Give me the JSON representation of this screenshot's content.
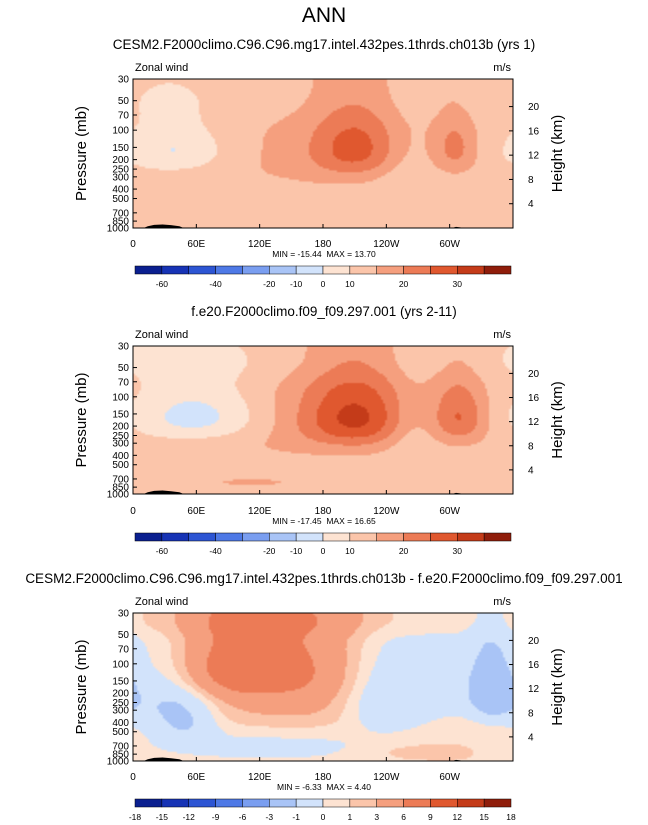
{
  "figure_title": "ANN",
  "colors": {
    "blue_scale": [
      "#0b1f8f",
      "#1733b5",
      "#2d55d3",
      "#4e79e6",
      "#7a9ef0",
      "#a9c4f6",
      "#d2e3fb"
    ],
    "red_scale": [
      "#fde3d2",
      "#fbc5aa",
      "#f59f7e",
      "#ec7b56",
      "#e0582f",
      "#c43b19",
      "#8f1d0b"
    ],
    "landmass": "#000000"
  },
  "chart_data": [
    {
      "type": "heatmap",
      "title": "CESM2.F2000climo.C96.C96.mg17.intel.432pes.1thrds.ch013b (yrs 1)",
      "left_label": "Zonal wind",
      "right_label": "m/s",
      "ylabel": "Pressure (mb)",
      "ylabel_right": "Height (km)",
      "x_ticks": [
        "0",
        "60E",
        "120E",
        "180",
        "120W",
        "60W"
      ],
      "y_ticks": [
        "30",
        "50",
        "70",
        "100",
        "150",
        "200",
        "250",
        "300",
        "400",
        "500",
        "700",
        "850",
        "1000"
      ],
      "height_ticks": [
        "20",
        "16",
        "12",
        "8",
        "4"
      ],
      "stats": "MIN = -15.44  MAX = 13.70",
      "colorbar_labels": [
        "-60",
        "-40",
        "-20",
        "-10",
        "0",
        "10",
        "20",
        "30"
      ],
      "colorbar_levels": [
        -70,
        -60,
        -50,
        -40,
        -30,
        -20,
        -15,
        -10,
        -5,
        0,
        5,
        10,
        15,
        20,
        25,
        30,
        35
      ],
      "xlim": [
        0,
        360
      ],
      "ylim": [
        1000,
        30
      ],
      "features": [
        {
          "lon": 100,
          "p": 600,
          "value": -4,
          "slon": 220,
          "sp": 700
        },
        {
          "lon": 40,
          "p": 160,
          "value": -9,
          "slon": 35,
          "sp": 70
        },
        {
          "lon": 210,
          "p": 150,
          "value": 12,
          "slon": 30,
          "sp": 90
        },
        {
          "lon": 305,
          "p": 150,
          "value": 8,
          "slon": 14,
          "sp": 70
        },
        {
          "lon": 160,
          "p": 200,
          "value": 4,
          "slon": 110,
          "sp": 170
        },
        {
          "lon": 110,
          "p": 750,
          "value": 3,
          "slon": 100,
          "sp": 180
        },
        {
          "lon": 260,
          "p": 280,
          "value": -4,
          "slon": 20,
          "sp": 150
        },
        {
          "lon": 180,
          "p": 40,
          "value": -2,
          "slon": 400,
          "sp": 25
        }
      ]
    },
    {
      "type": "heatmap",
      "title": "f.e20.F2000climo.f09_f09.297.001 (yrs 2-11)",
      "left_label": "Zonal wind",
      "right_label": "m/s",
      "ylabel": "Pressure (mb)",
      "ylabel_right": "Height (km)",
      "x_ticks": [
        "0",
        "60E",
        "120E",
        "180",
        "120W",
        "60W"
      ],
      "y_ticks": [
        "30",
        "50",
        "70",
        "100",
        "150",
        "200",
        "250",
        "300",
        "400",
        "500",
        "700",
        "850",
        "1000"
      ],
      "height_ticks": [
        "20",
        "16",
        "12",
        "8",
        "4"
      ],
      "stats": "MIN = -17.45  MAX = 16.65",
      "colorbar_labels": [
        "-60",
        "-40",
        "-20",
        "-10",
        "0",
        "10",
        "20",
        "30"
      ],
      "colorbar_levels": [
        -70,
        -60,
        -50,
        -40,
        -30,
        -20,
        -15,
        -10,
        -5,
        0,
        5,
        10,
        15,
        20,
        25,
        30,
        35
      ],
      "xlim": [
        0,
        360
      ],
      "ylim": [
        1000,
        30
      ],
      "features": [
        {
          "lon": 100,
          "p": 600,
          "value": -4,
          "slon": 220,
          "sp": 700
        },
        {
          "lon": 60,
          "p": 160,
          "value": -12,
          "slon": 45,
          "sp": 80
        },
        {
          "lon": 210,
          "p": 160,
          "value": 15,
          "slon": 35,
          "sp": 100
        },
        {
          "lon": 310,
          "p": 160,
          "value": 11,
          "slon": 18,
          "sp": 80
        },
        {
          "lon": 160,
          "p": 200,
          "value": 5,
          "slon": 120,
          "sp": 170
        },
        {
          "lon": 110,
          "p": 750,
          "value": 4,
          "slon": 100,
          "sp": 180
        },
        {
          "lon": 265,
          "p": 250,
          "value": -5,
          "slon": 18,
          "sp": 150
        },
        {
          "lon": 180,
          "p": 38,
          "value": -3,
          "slon": 400,
          "sp": 20
        }
      ]
    },
    {
      "type": "heatmap",
      "title": "CESM2.F2000climo.C96.C96.mg17.intel.432pes.1thrds.ch013b - f.e20.F2000climo.f09_f09.297.001",
      "left_label": "Zonal wind",
      "right_label": "m/s",
      "ylabel": "Pressure (mb)",
      "ylabel_right": "Height (km)",
      "x_ticks": [
        "0",
        "60E",
        "120E",
        "180",
        "120W",
        "60W"
      ],
      "y_ticks": [
        "30",
        "50",
        "70",
        "100",
        "150",
        "200",
        "250",
        "300",
        "400",
        "500",
        "700",
        "850",
        "1000"
      ],
      "height_ticks": [
        "20",
        "16",
        "12",
        "8",
        "4"
      ],
      "stats": "MIN = -6.33  MAX = 4.40",
      "colorbar_labels": [
        "-18",
        "-15",
        "-12",
        "-9",
        "-6",
        "-3",
        "-1",
        "0",
        "1",
        "3",
        "6",
        "9",
        "12",
        "15",
        "18"
      ],
      "colorbar_levels": [
        -21,
        -18,
        -15,
        -12,
        -9,
        -6,
        -3,
        -1,
        0,
        1,
        3,
        6,
        9,
        12,
        15,
        18,
        21
      ],
      "xlim": [
        0,
        360
      ],
      "ylim": [
        1000,
        30
      ],
      "features": [
        {
          "lon": 100,
          "p": 110,
          "value": 3.5,
          "slon": 55,
          "sp": 70
        },
        {
          "lon": 160,
          "p": 200,
          "value": 2,
          "slon": 90,
          "sp": 200
        },
        {
          "lon": 25,
          "p": 200,
          "value": -3,
          "slon": 30,
          "sp": 150
        },
        {
          "lon": 240,
          "p": 230,
          "value": -3.5,
          "slon": 30,
          "sp": 160
        },
        {
          "lon": 340,
          "p": 190,
          "value": -4.5,
          "slon": 15,
          "sp": 110
        },
        {
          "lon": 300,
          "p": 150,
          "value": -2,
          "slon": 30,
          "sp": 150
        },
        {
          "lon": 50,
          "p": 400,
          "value": -2.5,
          "slon": 20,
          "sp": 150
        },
        {
          "lon": 180,
          "p": 34,
          "value": 1,
          "slon": 500,
          "sp": 12
        },
        {
          "lon": 130,
          "p": 700,
          "value": -1.5,
          "slon": 110,
          "sp": 250
        },
        {
          "lon": 270,
          "p": 800,
          "value": 1,
          "slon": 40,
          "sp": 120
        }
      ]
    }
  ]
}
